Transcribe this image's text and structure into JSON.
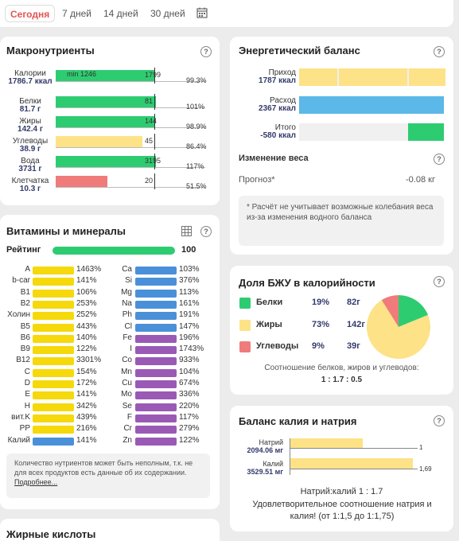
{
  "periods": [
    "Сегодня",
    "7 дней",
    "14 дней",
    "30 дней"
  ],
  "macros": {
    "title": "Макронутриенты",
    "min_label": "min 1246",
    "rows": [
      {
        "name": "Калории",
        "value": "1786.7 ккал",
        "target": "1799",
        "pct": "99.3%",
        "fill": 0.993,
        "color": "#2ecc71"
      },
      {
        "name": "Белки",
        "value": "81.7 г",
        "target": "81",
        "pct": "101%",
        "fill": 1.0,
        "color": "#2ecc71"
      },
      {
        "name": "Жиры",
        "value": "142.4 г",
        "target": "144",
        "pct": "98.9%",
        "fill": 0.989,
        "color": "#2ecc71"
      },
      {
        "name": "Углеводы",
        "value": "38.9 г",
        "target": "45",
        "pct": "86.4%",
        "fill": 0.864,
        "color": "#fde287"
      },
      {
        "name": "Вода",
        "value": "3731 г",
        "target": "3195",
        "pct": "117%",
        "fill": 1.0,
        "color": "#2ecc71"
      },
      {
        "name": "Клетчатка",
        "value": "10.3 г",
        "target": "20",
        "pct": "51.5%",
        "fill": 0.515,
        "color": "#f07b7b"
      }
    ]
  },
  "vitamins": {
    "title": "Витамины и минералы",
    "rating_label": "Рейтинг",
    "rating_value": "100",
    "left": [
      {
        "name": "A",
        "pct": "1463%"
      },
      {
        "name": "b-car",
        "pct": "141%"
      },
      {
        "name": "B1",
        "pct": "106%"
      },
      {
        "name": "B2",
        "pct": "253%"
      },
      {
        "name": "Холин",
        "pct": "252%"
      },
      {
        "name": "B5",
        "pct": "443%"
      },
      {
        "name": "B6",
        "pct": "140%"
      },
      {
        "name": "B9",
        "pct": "122%"
      },
      {
        "name": "B12",
        "pct": "3301%"
      },
      {
        "name": "C",
        "pct": "154%"
      },
      {
        "name": "D",
        "pct": "172%"
      },
      {
        "name": "E",
        "pct": "141%"
      },
      {
        "name": "H",
        "pct": "342%"
      },
      {
        "name": "вит.K",
        "pct": "439%"
      },
      {
        "name": "PP",
        "pct": "216%"
      },
      {
        "name": "Калий",
        "pct": "141%"
      }
    ],
    "right": [
      {
        "name": "Ca",
        "pct": "103%"
      },
      {
        "name": "Si",
        "pct": "376%"
      },
      {
        "name": "Mg",
        "pct": "113%"
      },
      {
        "name": "Na",
        "pct": "161%"
      },
      {
        "name": "Ph",
        "pct": "191%"
      },
      {
        "name": "Cl",
        "pct": "147%"
      },
      {
        "name": "Fe",
        "pct": "196%"
      },
      {
        "name": "I",
        "pct": "1743%"
      },
      {
        "name": "Co",
        "pct": "933%"
      },
      {
        "name": "Mn",
        "pct": "104%"
      },
      {
        "name": "Cu",
        "pct": "674%"
      },
      {
        "name": "Mo",
        "pct": "336%"
      },
      {
        "name": "Se",
        "pct": "220%"
      },
      {
        "name": "F",
        "pct": "117%"
      },
      {
        "name": "Cr",
        "pct": "279%"
      },
      {
        "name": "Zn",
        "pct": "122%"
      }
    ],
    "note": "Количество нутриентов может быть неполным, т.к. не для всех продуктов есть данные об их содержании.",
    "note_link": "Подробнее..."
  },
  "fatty": {
    "title": "Жирные кислоты"
  },
  "energy": {
    "title": "Энергетический баланс",
    "income_label": "Приход",
    "income_value": "1787 ккал",
    "expense_label": "Расход",
    "expense_value": "2367 ккал",
    "total_label": "Итого",
    "total_value": "-580 ккал",
    "weight_title": "Изменение веса",
    "forecast_label": "Прогноз*",
    "forecast_value": "-0.08 кг",
    "note": "* Расчёт не учитывает возможные колебания веса из-за изменения водного баланса"
  },
  "bju": {
    "title": "Доля БЖУ в калорийности",
    "rows": [
      {
        "name": "Белки",
        "pct": "19%",
        "grams": "82г",
        "color": "#2ecc71"
      },
      {
        "name": "Жиры",
        "pct": "73%",
        "grams": "142г",
        "color": "#fde287"
      },
      {
        "name": "Углеводы",
        "pct": "9%",
        "grams": "39г",
        "color": "#f07b7b"
      }
    ],
    "ratio_caption": "Соотношение белков, жиров и углеводов:",
    "ratio_value": "1 : 1.7 : 0.5"
  },
  "kn": {
    "title": "Баланс калия и натрия",
    "sodium_label": "Натрий",
    "sodium_value": "2094.06 мг",
    "sodium_ratio": "1",
    "potassium_label": "Калий",
    "potassium_value": "3529.51 мг",
    "potassium_ratio": "1,69",
    "ratio_text": "Натрий:калий 1 : 1.7",
    "conclusion": "Удовлетворительное соотношение натрия и калия! (от 1:1,5 до 1:1,75)"
  },
  "colors": {
    "green": "#2ecc71",
    "yellow": "#fde287",
    "blue": "#5bb8e8",
    "purple": "#9b59b6",
    "red": "#f07b7b",
    "accent": "#e25454"
  }
}
